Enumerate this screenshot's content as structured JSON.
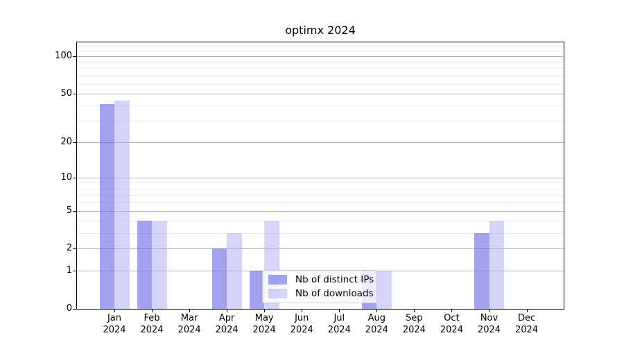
{
  "chart_data": {
    "type": "bar",
    "title": "optimx 2024",
    "y_scale": "log1p",
    "grid": true,
    "legend_position": "lower center",
    "categories": [
      "Jan 2024",
      "Feb 2024",
      "Mar 2024",
      "Apr 2024",
      "May 2024",
      "Jun 2024",
      "Jul 2024",
      "Aug 2024",
      "Sep 2024",
      "Oct 2024",
      "Nov 2024",
      "Dec 2024"
    ],
    "series": [
      {
        "name": "Nb of distinct IPs",
        "color": "rgba(100,100,228,0.60)",
        "color_flat": "#a2a2ee",
        "values": [
          41,
          4,
          0,
          2,
          1,
          0,
          0,
          1,
          0,
          0,
          3,
          0
        ]
      },
      {
        "name": "Nb of downloads",
        "color": "rgba(172,172,240,0.50)",
        "color_flat": "#d6d6f8",
        "values": [
          44,
          4,
          0,
          3,
          4,
          0,
          0,
          1,
          0,
          0,
          4,
          0
        ]
      }
    ],
    "y_major_ticks": [
      0,
      1,
      2,
      5,
      10,
      20,
      50,
      100
    ],
    "y_minor_ticks": [
      3,
      4,
      6,
      7,
      8,
      9,
      30,
      40,
      60,
      70,
      80,
      90,
      110,
      120
    ],
    "ylim": [
      0,
      127
    ]
  }
}
